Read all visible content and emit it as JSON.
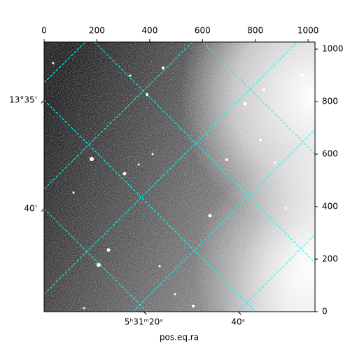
{
  "chart_data": {
    "type": "image",
    "xlabel": "pos.eq.ra",
    "xlim": [
      0,
      1026
    ],
    "xticks": [
      0,
      200,
      400,
      600,
      800,
      1000
    ],
    "ylim": [
      0,
      1027
    ],
    "yticks": [
      0,
      200,
      400,
      600,
      800,
      1000
    ],
    "world_xticks": [
      {
        "value": 377,
        "label": "5ʰ31ᵐ20ˢ"
      },
      {
        "value": 735,
        "label": "40ˢ"
      }
    ],
    "world_yticks": [
      {
        "value": 805,
        "label": "13°35'"
      },
      {
        "value": 392,
        "label": "40'"
      }
    ]
  }
}
